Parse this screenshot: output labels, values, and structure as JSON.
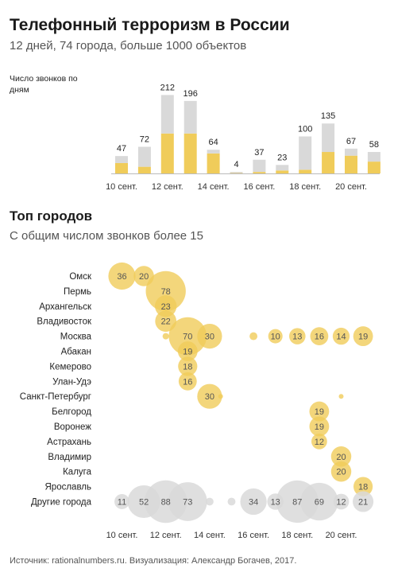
{
  "header": {
    "title": "Телефонный терроризм в России",
    "subtitle": "12 дней, 74 города, больше 1000 объектов"
  },
  "section2": {
    "title": "Топ городов",
    "subtitle": "С общим числом звонков более 15"
  },
  "source": "Источник: rationalnumbers.ru. Визуализация: Александр Богачев, 2017.",
  "colors": {
    "top_cities": "#f0cc5a",
    "other": "#d9d9d9",
    "bubble_text": "#6b5d2a",
    "other_text": "#555555"
  },
  "chart_data": [
    {
      "type": "bar",
      "stacked": true,
      "ylabel": "Число звонков по дням",
      "x": [
        "10 сент.",
        "11 сент.",
        "12 сент.",
        "13 сент.",
        "14 сент.",
        "15 сент.",
        "16 сент.",
        "17 сент.",
        "18 сент.",
        "19 сент.",
        "20 сент.",
        "21 сент."
      ],
      "tick_labels": [
        "10 сент.",
        "12 сент.",
        "14 сент.",
        "16 сент.",
        "18 сент.",
        "20 сент."
      ],
      "totals": [
        47,
        72,
        212,
        196,
        64,
        4,
        37,
        23,
        100,
        135,
        67,
        58
      ],
      "series": [
        {
          "values": [
            28,
            18,
            108,
            108,
            54,
            1,
            4,
            8,
            10,
            58,
            48,
            32
          ]
        },
        {
          "values": [
            19,
            54,
            104,
            88,
            10,
            3,
            33,
            15,
            90,
            77,
            19,
            26
          ]
        }
      ]
    },
    {
      "type": "scatter",
      "subtype": "bubble",
      "x": [
        "10 сент.",
        "11 сент.",
        "12 сент.",
        "13 сент.",
        "14 сент.",
        "15 сент.",
        "16 сент.",
        "17 сент.",
        "18 сент.",
        "19 сент.",
        "20 сент.",
        "21 сент."
      ],
      "tick_labels": [
        "10 сент.",
        "12 сент.",
        "14 сент.",
        "16 сент.",
        "18 сент.",
        "20 сент."
      ],
      "rows": [
        {
          "city": "Омск",
          "points": [
            [
              0,
              36
            ],
            [
              1,
              20
            ]
          ]
        },
        {
          "city": "Пермь",
          "points": [
            [
              2,
              78
            ]
          ]
        },
        {
          "city": "Архангельск",
          "points": [
            [
              2,
              23
            ]
          ]
        },
        {
          "city": "Владивосток",
          "points": [
            [
              2,
              22
            ]
          ]
        },
        {
          "city": "Москва",
          "points": [
            [
              2,
              2
            ],
            [
              3,
              70
            ],
            [
              4,
              30
            ],
            [
              6,
              3
            ],
            [
              7,
              10
            ],
            [
              8,
              13
            ],
            [
              9,
              16
            ],
            [
              10,
              14
            ],
            [
              11,
              19
            ]
          ]
        },
        {
          "city": "Абакан",
          "points": [
            [
              3,
              19
            ]
          ]
        },
        {
          "city": "Кемерово",
          "points": [
            [
              3,
              18
            ]
          ]
        },
        {
          "city": "Улан-Удэ",
          "points": [
            [
              3,
              16
            ]
          ]
        },
        {
          "city": "Санкт-Петербург",
          "points": [
            [
              4,
              30
            ],
            [
              4.5,
              1
            ],
            [
              10,
              1
            ]
          ]
        },
        {
          "city": "Белгород",
          "points": [
            [
              9,
              19
            ]
          ]
        },
        {
          "city": "Воронеж",
          "points": [
            [
              9,
              19
            ]
          ]
        },
        {
          "city": "Астрахань",
          "points": [
            [
              9,
              12
            ]
          ]
        },
        {
          "city": "Владимир",
          "points": [
            [
              10,
              20
            ]
          ]
        },
        {
          "city": "Калуга",
          "points": [
            [
              10,
              20
            ]
          ]
        },
        {
          "city": "Ярославль",
          "points": [
            [
              11,
              18
            ]
          ]
        },
        {
          "city": "Другие города",
          "other": true,
          "points": [
            [
              0,
              11
            ],
            [
              1,
              52
            ],
            [
              2,
              88
            ],
            [
              3,
              73
            ],
            [
              4,
              3
            ],
            [
              5,
              3
            ],
            [
              6,
              34
            ],
            [
              7,
              13
            ],
            [
              8,
              87
            ],
            [
              9,
              69
            ],
            [
              10,
              12
            ],
            [
              11,
              21
            ]
          ]
        }
      ]
    }
  ]
}
